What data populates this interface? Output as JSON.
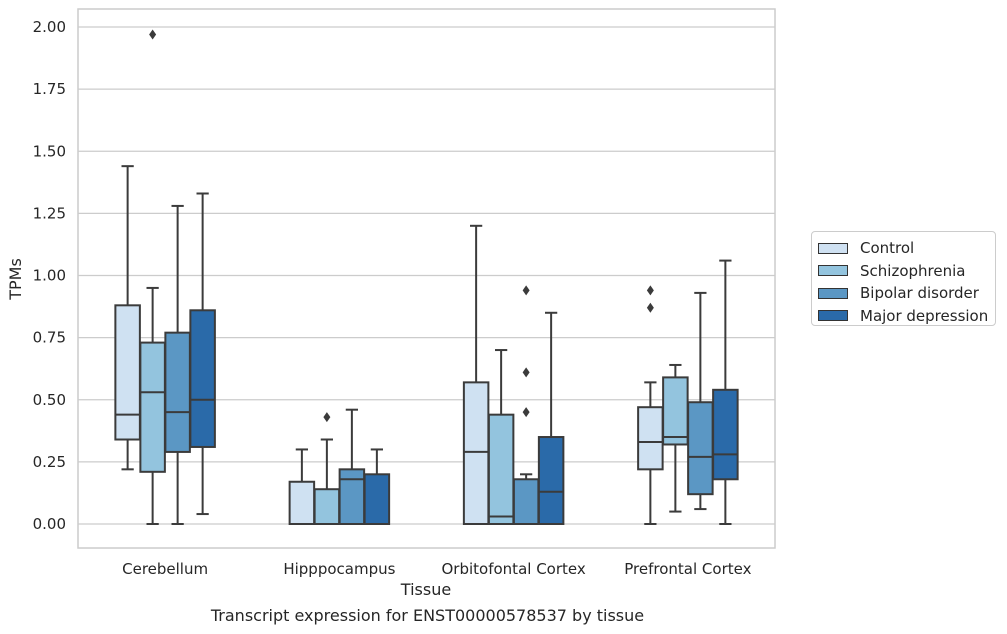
{
  "caption": "Transcript expression for ENST00000578537 by tissue",
  "chart_data": {
    "type": "box",
    "xlabel": "Tissue",
    "ylabel": "TPMs",
    "ylim": [
      -0.1,
      2.07
    ],
    "yticks": [
      "0.00",
      "0.25",
      "0.50",
      "0.75",
      "1.00",
      "1.25",
      "1.50",
      "1.75",
      "2.00"
    ],
    "grid": "horizontal",
    "legend_position": "right outside",
    "categories": [
      "Cerebellum",
      "Hipppocampus",
      "Orbitofontal Cortex",
      "Prefrontal Cortex"
    ],
    "series": [
      {
        "name": "Control",
        "color": "#cfe1f2",
        "boxes": [
          {
            "whislo": 0.22,
            "q1": 0.34,
            "med": 0.44,
            "q3": 0.88,
            "whishi": 1.44,
            "fliers": []
          },
          {
            "whislo": 0.0,
            "q1": 0.0,
            "med": 0.0,
            "q3": 0.17,
            "whishi": 0.3,
            "fliers": []
          },
          {
            "whislo": 0.0,
            "q1": 0.0,
            "med": 0.29,
            "q3": 0.57,
            "whishi": 1.2,
            "fliers": []
          },
          {
            "whislo": 0.0,
            "q1": 0.22,
            "med": 0.33,
            "q3": 0.47,
            "whishi": 0.57,
            "fliers": [
              0.87,
              0.94
            ]
          }
        ]
      },
      {
        "name": "Schizophrenia",
        "color": "#93c4de",
        "boxes": [
          {
            "whislo": 0.0,
            "q1": 0.21,
            "med": 0.53,
            "q3": 0.73,
            "whishi": 0.95,
            "fliers": [
              1.97
            ]
          },
          {
            "whislo": 0.0,
            "q1": 0.0,
            "med": 0.0,
            "q3": 0.14,
            "whishi": 0.34,
            "fliers": [
              0.43
            ]
          },
          {
            "whislo": 0.0,
            "q1": 0.0,
            "med": 0.03,
            "q3": 0.44,
            "whishi": 0.7,
            "fliers": []
          },
          {
            "whislo": 0.05,
            "q1": 0.32,
            "med": 0.35,
            "q3": 0.59,
            "whishi": 0.64,
            "fliers": []
          }
        ]
      },
      {
        "name": "Bipolar disorder",
        "color": "#5b97c4",
        "boxes": [
          {
            "whislo": 0.0,
            "q1": 0.29,
            "med": 0.45,
            "q3": 0.77,
            "whishi": 1.28,
            "fliers": []
          },
          {
            "whislo": 0.0,
            "q1": 0.0,
            "med": 0.18,
            "q3": 0.22,
            "whishi": 0.46,
            "fliers": []
          },
          {
            "whislo": 0.0,
            "q1": 0.0,
            "med": 0.0,
            "q3": 0.18,
            "whishi": 0.2,
            "fliers": [
              0.45,
              0.61,
              0.94
            ]
          },
          {
            "whislo": 0.06,
            "q1": 0.12,
            "med": 0.27,
            "q3": 0.49,
            "whishi": 0.93,
            "fliers": []
          }
        ]
      },
      {
        "name": "Major depression",
        "color": "#2a6aa9",
        "boxes": [
          {
            "whislo": 0.04,
            "q1": 0.31,
            "med": 0.5,
            "q3": 0.86,
            "whishi": 1.33,
            "fliers": []
          },
          {
            "whislo": 0.0,
            "q1": 0.0,
            "med": 0.0,
            "q3": 0.2,
            "whishi": 0.3,
            "fliers": []
          },
          {
            "whislo": 0.0,
            "q1": 0.0,
            "med": 0.13,
            "q3": 0.35,
            "whishi": 0.85,
            "fliers": []
          },
          {
            "whislo": 0.0,
            "q1": 0.18,
            "med": 0.28,
            "q3": 0.54,
            "whishi": 1.06,
            "fliers": []
          }
        ]
      }
    ]
  }
}
